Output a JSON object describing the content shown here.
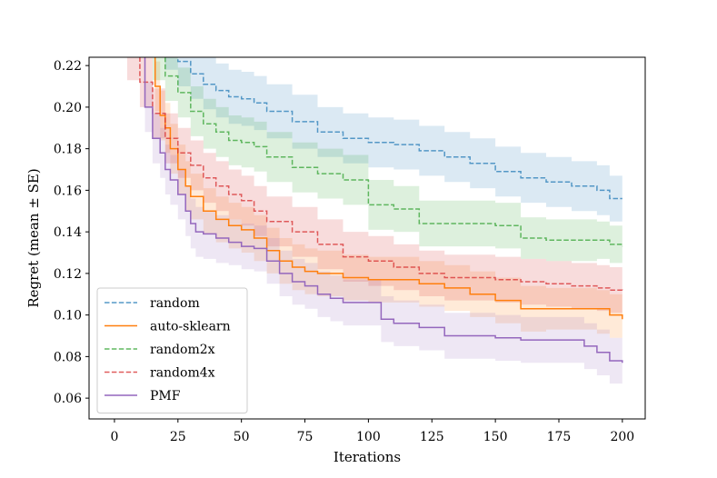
{
  "chart_data": {
    "type": "line",
    "xlabel": "Iterations",
    "ylabel": "Regret (mean ± SE)",
    "xlim": [
      -10,
      209
    ],
    "ylim": [
      0.05,
      0.224
    ],
    "xticks": [
      0,
      25,
      50,
      75,
      100,
      125,
      150,
      175,
      200
    ],
    "yticks": [
      0.06,
      0.08,
      0.1,
      0.12,
      0.14,
      0.16,
      0.18,
      0.2,
      0.22
    ],
    "xtick_labels": [
      "0",
      "25",
      "50",
      "75",
      "100",
      "125",
      "150",
      "175",
      "200"
    ],
    "ytick_labels": [
      "0.06",
      "0.08",
      "0.10",
      "0.12",
      "0.14",
      "0.16",
      "0.18",
      "0.20",
      "0.22"
    ],
    "grid": false,
    "legend_position": "lower-left",
    "series": [
      {
        "name": "random",
        "color": "#1f77b4",
        "dash": "dashed",
        "x": [
          15,
          20,
          25,
          30,
          35,
          40,
          45,
          50,
          55,
          60,
          70,
          80,
          90,
          100,
          110,
          120,
          130,
          140,
          150,
          160,
          170,
          180,
          190,
          195,
          200
        ],
        "y": [
          0.235,
          0.228,
          0.222,
          0.216,
          0.211,
          0.208,
          0.205,
          0.204,
          0.202,
          0.198,
          0.193,
          0.188,
          0.185,
          0.183,
          0.182,
          0.179,
          0.176,
          0.173,
          0.169,
          0.166,
          0.164,
          0.162,
          0.16,
          0.156,
          0.156
        ],
        "upper": [
          0.245,
          0.24,
          0.235,
          0.229,
          0.224,
          0.221,
          0.218,
          0.217,
          0.215,
          0.211,
          0.206,
          0.2,
          0.197,
          0.195,
          0.194,
          0.191,
          0.188,
          0.185,
          0.181,
          0.178,
          0.176,
          0.174,
          0.172,
          0.167,
          0.167
        ],
        "lower": [
          0.225,
          0.218,
          0.21,
          0.204,
          0.199,
          0.195,
          0.192,
          0.191,
          0.189,
          0.185,
          0.18,
          0.176,
          0.173,
          0.171,
          0.17,
          0.167,
          0.164,
          0.161,
          0.157,
          0.154,
          0.152,
          0.15,
          0.148,
          0.145,
          0.145
        ]
      },
      {
        "name": "auto-sklearn",
        "color": "#ff7f0e",
        "dash": "solid",
        "x": [
          14,
          16,
          18,
          20,
          22,
          25,
          28,
          30,
          35,
          40,
          45,
          50,
          55,
          60,
          65,
          70,
          75,
          80,
          90,
          100,
          110,
          120,
          130,
          140,
          150,
          160,
          170,
          180,
          190,
          195,
          200
        ],
        "y": [
          0.235,
          0.21,
          0.196,
          0.19,
          0.18,
          0.17,
          0.162,
          0.157,
          0.15,
          0.146,
          0.143,
          0.141,
          0.137,
          0.131,
          0.126,
          0.123,
          0.121,
          0.12,
          0.118,
          0.117,
          0.117,
          0.115,
          0.113,
          0.11,
          0.107,
          0.103,
          0.103,
          0.103,
          0.103,
          0.1,
          0.098
        ],
        "upper": [
          0.245,
          0.222,
          0.208,
          0.202,
          0.192,
          0.182,
          0.174,
          0.168,
          0.161,
          0.157,
          0.154,
          0.152,
          0.148,
          0.142,
          0.137,
          0.134,
          0.132,
          0.131,
          0.129,
          0.128,
          0.128,
          0.126,
          0.124,
          0.121,
          0.118,
          0.114,
          0.113,
          0.113,
          0.112,
          0.11,
          0.108
        ],
        "lower": [
          0.225,
          0.198,
          0.184,
          0.178,
          0.168,
          0.158,
          0.15,
          0.146,
          0.139,
          0.135,
          0.132,
          0.13,
          0.126,
          0.12,
          0.115,
          0.112,
          0.11,
          0.109,
          0.107,
          0.106,
          0.106,
          0.104,
          0.102,
          0.099,
          0.096,
          0.092,
          0.093,
          0.093,
          0.091,
          0.089,
          0.087
        ]
      },
      {
        "name": "random2x",
        "color": "#2ca02c",
        "dash": "dashed",
        "x": [
          12,
          15,
          20,
          25,
          30,
          35,
          40,
          45,
          50,
          55,
          60,
          70,
          80,
          90,
          100,
          110,
          120,
          130,
          140,
          150,
          160,
          170,
          180,
          190,
          195,
          200
        ],
        "y": [
          0.235,
          0.225,
          0.215,
          0.207,
          0.198,
          0.192,
          0.188,
          0.184,
          0.183,
          0.181,
          0.176,
          0.171,
          0.168,
          0.165,
          0.153,
          0.151,
          0.144,
          0.144,
          0.144,
          0.143,
          0.137,
          0.136,
          0.136,
          0.136,
          0.134,
          0.133
        ],
        "upper": [
          0.245,
          0.237,
          0.227,
          0.219,
          0.21,
          0.204,
          0.2,
          0.196,
          0.195,
          0.193,
          0.188,
          0.183,
          0.18,
          0.177,
          0.165,
          0.162,
          0.155,
          0.155,
          0.155,
          0.154,
          0.147,
          0.146,
          0.146,
          0.145,
          0.143,
          0.142
        ],
        "lower": [
          0.225,
          0.213,
          0.203,
          0.195,
          0.186,
          0.18,
          0.176,
          0.172,
          0.171,
          0.169,
          0.164,
          0.159,
          0.156,
          0.153,
          0.141,
          0.14,
          0.133,
          0.133,
          0.133,
          0.132,
          0.127,
          0.126,
          0.126,
          0.127,
          0.125,
          0.124
        ]
      },
      {
        "name": "random4x",
        "color": "#d62728",
        "dash": "dashed",
        "x": [
          5,
          10,
          15,
          20,
          25,
          30,
          35,
          40,
          45,
          50,
          55,
          60,
          70,
          80,
          90,
          100,
          110,
          120,
          130,
          140,
          150,
          160,
          170,
          180,
          190,
          195,
          200
        ],
        "y": [
          0.225,
          0.212,
          0.197,
          0.185,
          0.178,
          0.172,
          0.166,
          0.162,
          0.158,
          0.155,
          0.15,
          0.145,
          0.14,
          0.134,
          0.128,
          0.126,
          0.123,
          0.12,
          0.118,
          0.118,
          0.117,
          0.116,
          0.115,
          0.114,
          0.113,
          0.112,
          0.111
        ],
        "upper": [
          0.237,
          0.224,
          0.209,
          0.197,
          0.19,
          0.184,
          0.178,
          0.174,
          0.17,
          0.167,
          0.162,
          0.157,
          0.152,
          0.146,
          0.14,
          0.138,
          0.134,
          0.131,
          0.129,
          0.129,
          0.128,
          0.127,
          0.126,
          0.125,
          0.124,
          0.123,
          0.122
        ],
        "lower": [
          0.213,
          0.2,
          0.185,
          0.173,
          0.166,
          0.16,
          0.154,
          0.15,
          0.146,
          0.143,
          0.138,
          0.133,
          0.128,
          0.122,
          0.116,
          0.114,
          0.112,
          0.109,
          0.107,
          0.107,
          0.106,
          0.105,
          0.104,
          0.103,
          0.102,
          0.101,
          0.1
        ]
      },
      {
        "name": "PMF",
        "color": "#9467bd",
        "dash": "solid",
        "x": [
          10,
          12,
          15,
          18,
          20,
          22,
          25,
          28,
          30,
          32,
          35,
          40,
          45,
          50,
          55,
          60,
          65,
          70,
          75,
          80,
          85,
          90,
          100,
          105,
          110,
          120,
          130,
          140,
          150,
          160,
          170,
          180,
          185,
          190,
          195,
          200
        ],
        "y": [
          0.235,
          0.2,
          0.185,
          0.178,
          0.17,
          0.165,
          0.158,
          0.15,
          0.144,
          0.14,
          0.139,
          0.137,
          0.135,
          0.133,
          0.132,
          0.126,
          0.12,
          0.116,
          0.114,
          0.11,
          0.108,
          0.106,
          0.106,
          0.098,
          0.096,
          0.094,
          0.09,
          0.09,
          0.089,
          0.088,
          0.088,
          0.088,
          0.085,
          0.082,
          0.078,
          0.077
        ],
        "upper": [
          0.245,
          0.212,
          0.197,
          0.19,
          0.182,
          0.177,
          0.17,
          0.162,
          0.156,
          0.152,
          0.15,
          0.148,
          0.146,
          0.144,
          0.143,
          0.137,
          0.131,
          0.127,
          0.125,
          0.121,
          0.119,
          0.117,
          0.117,
          0.109,
          0.107,
          0.105,
          0.101,
          0.101,
          0.1,
          0.099,
          0.099,
          0.099,
          0.096,
          0.093,
          0.089,
          0.088
        ],
        "lower": [
          0.225,
          0.188,
          0.173,
          0.166,
          0.158,
          0.153,
          0.146,
          0.138,
          0.132,
          0.128,
          0.127,
          0.125,
          0.124,
          0.122,
          0.121,
          0.115,
          0.109,
          0.105,
          0.103,
          0.099,
          0.097,
          0.095,
          0.095,
          0.087,
          0.085,
          0.083,
          0.079,
          0.079,
          0.078,
          0.077,
          0.077,
          0.077,
          0.074,
          0.071,
          0.067,
          0.066
        ]
      }
    ]
  }
}
